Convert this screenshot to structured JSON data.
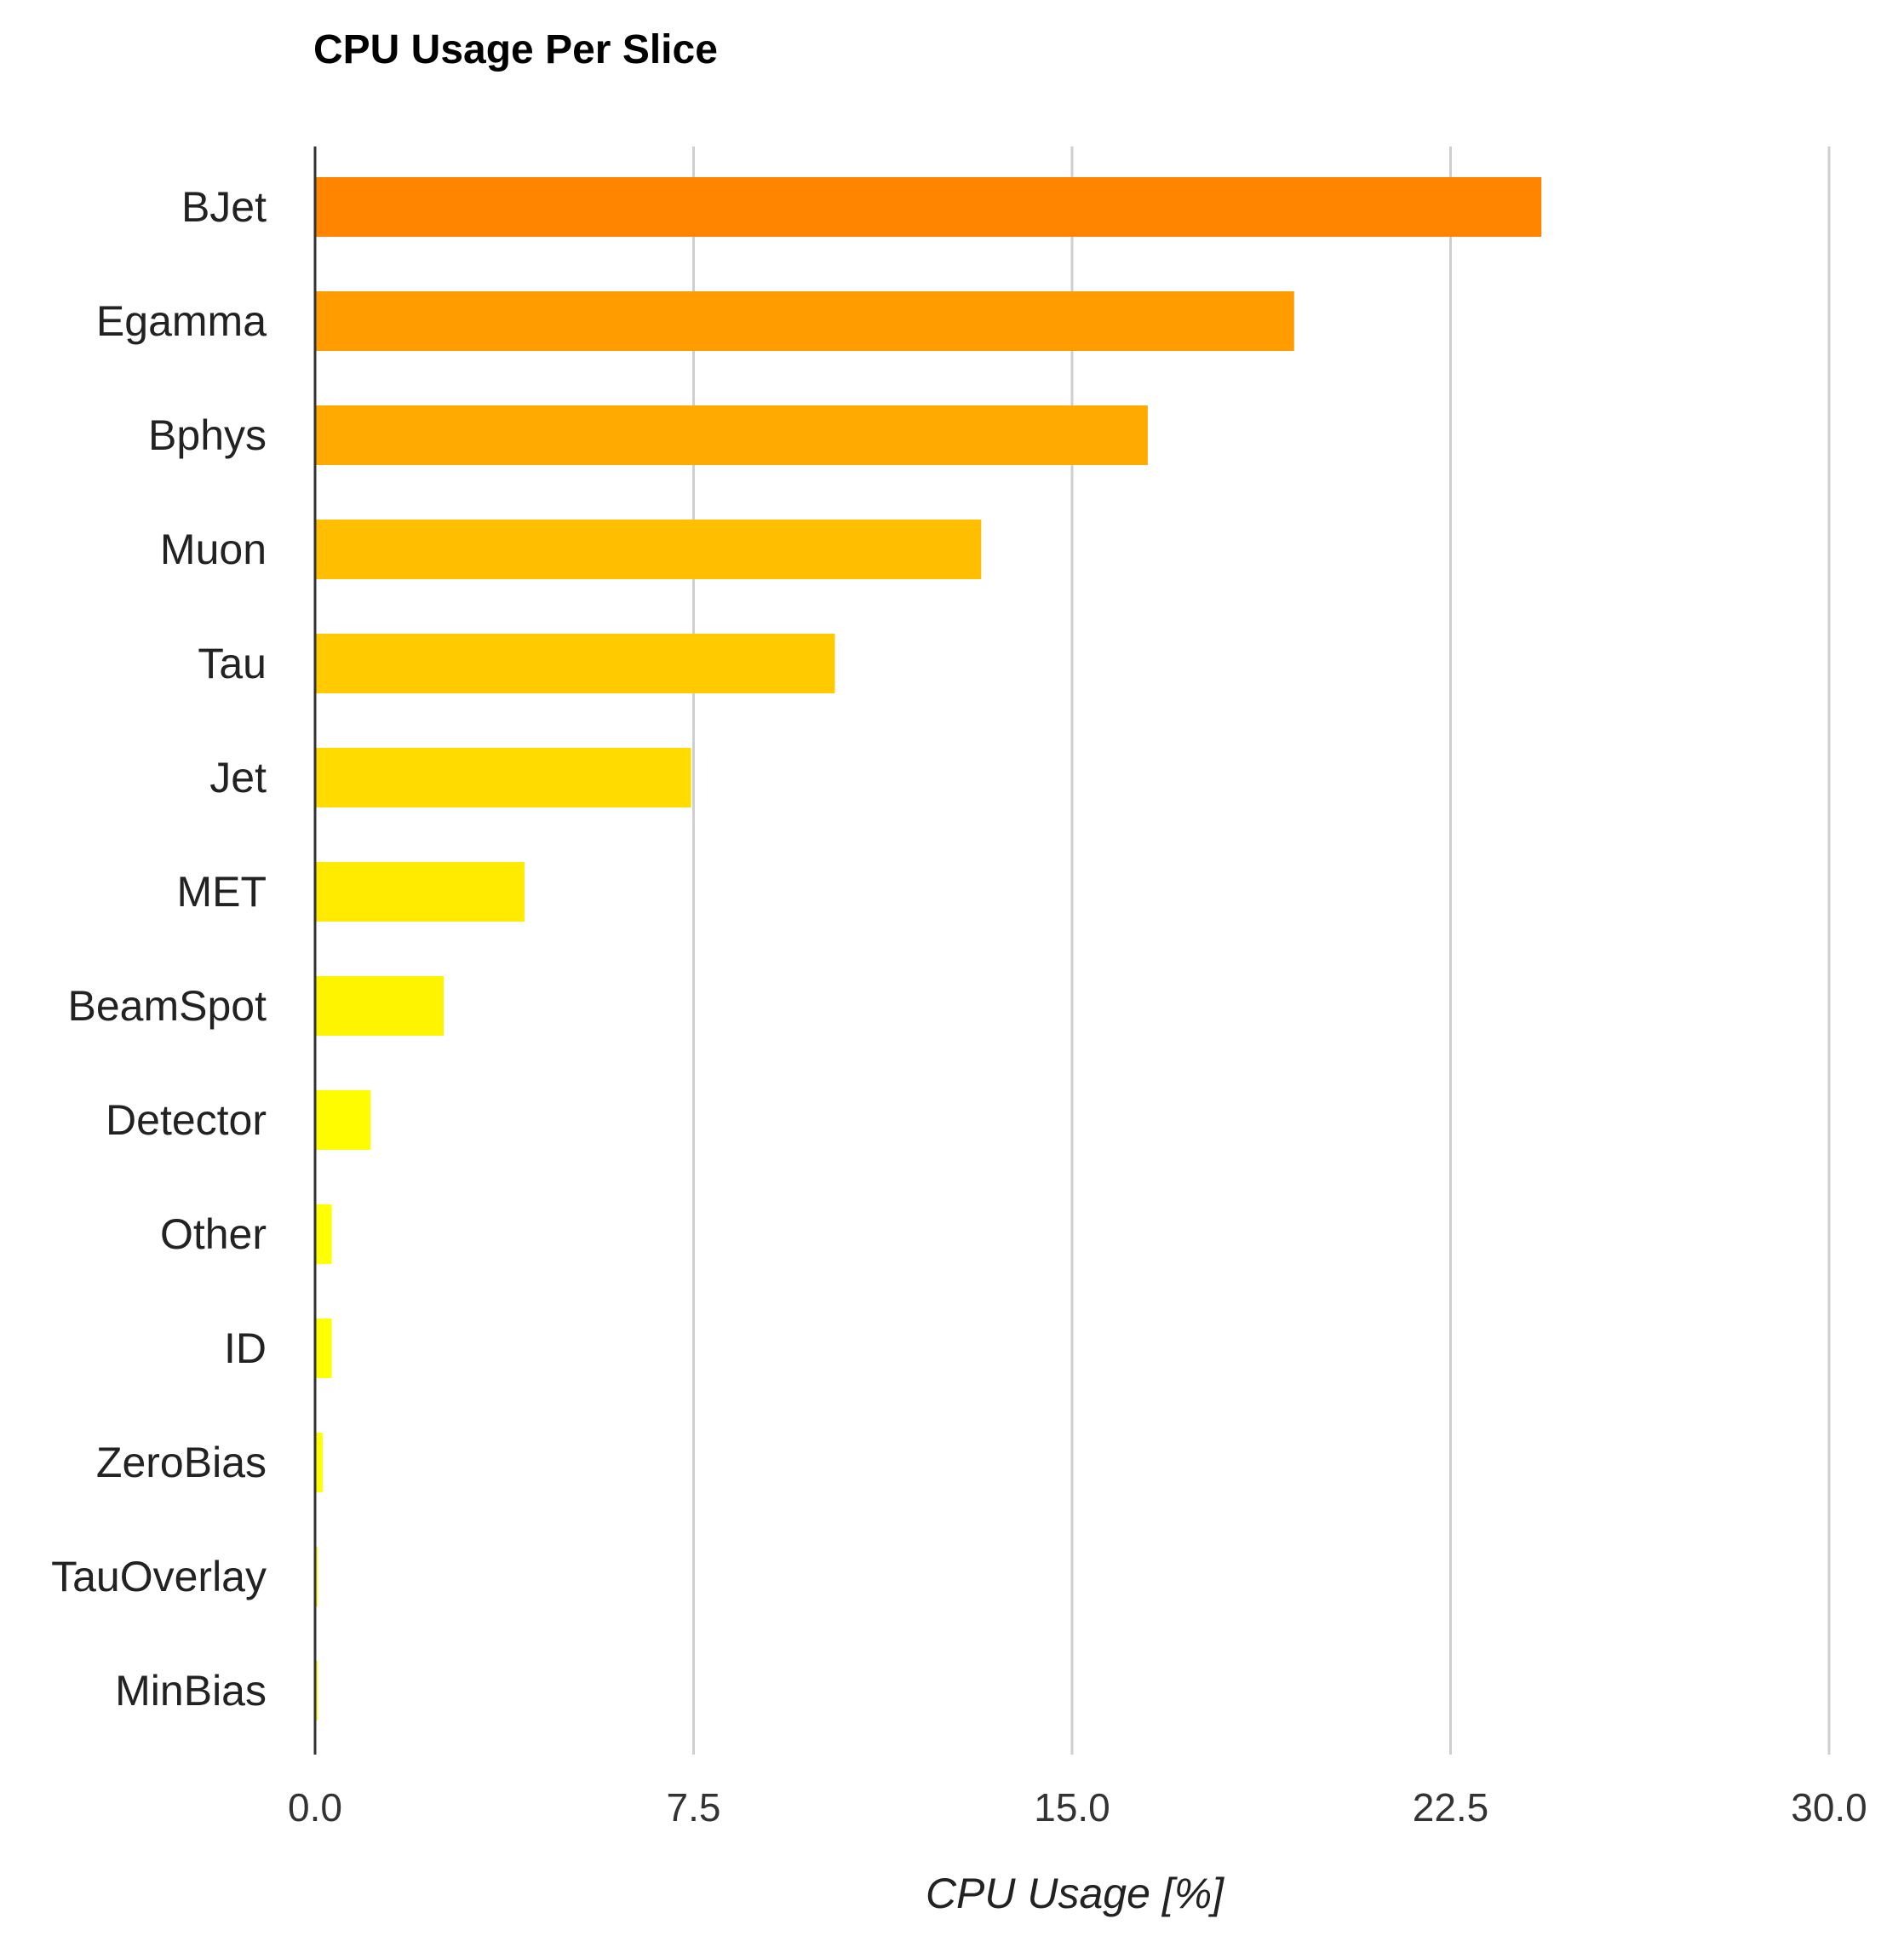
{
  "chart_data": {
    "type": "bar",
    "orientation": "horizontal",
    "title": "CPU Usage Per Slice",
    "xlabel": "CPU Usage [%]",
    "ylabel": "",
    "xlim": [
      0,
      30
    ],
    "xticks": [
      "0.0",
      "7.5",
      "15.0",
      "22.5",
      "30.0"
    ],
    "xtick_values": [
      0,
      7.5,
      15,
      22.5,
      30
    ],
    "grid": "vertical",
    "legend": "none",
    "categories": [
      "BJet",
      "Egamma",
      "Bphys",
      "Muon",
      "Tau",
      "Jet",
      "MET",
      "BeamSpot",
      "Detector",
      "Other",
      "ID",
      "ZeroBias",
      "TauOverlay",
      "MinBias"
    ],
    "values": [
      24.3,
      19.4,
      16.5,
      13.2,
      10.3,
      7.45,
      4.15,
      2.55,
      1.1,
      0.33,
      0.33,
      0.15,
      0.02,
      0.02
    ],
    "colors": [
      "#ff8500",
      "#ff9c00",
      "#ffaa00",
      "#ffbf00",
      "#ffca00",
      "#ffdb00",
      "#ffeb00",
      "#fff400",
      "#fffc00",
      "#ffff00",
      "#ffff00",
      "#ffff00",
      "#ffff00",
      "#ffff00"
    ]
  }
}
